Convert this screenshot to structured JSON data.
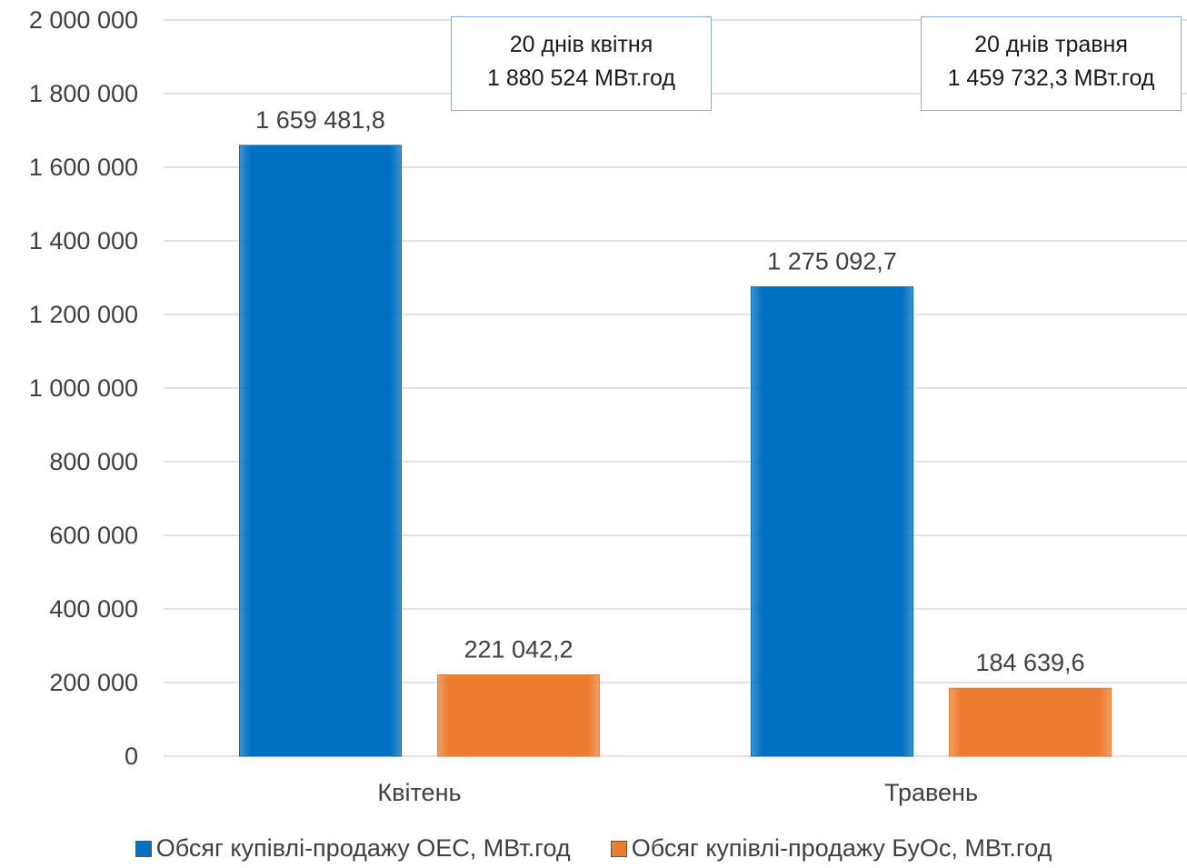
{
  "chart_data": {
    "type": "bar",
    "categories": [
      "Квітень",
      "Травень"
    ],
    "series": [
      {
        "name": "Обсяг купівлі-продажу ОЕС, МВт.год",
        "values": [
          1659481.8,
          1275092.7
        ],
        "labels": [
          "1 659 481,8",
          "1 275 092,7"
        ],
        "color": "#0070c0"
      },
      {
        "name": "Обсяг купівлі-продажу БуОс, МВт.год",
        "values": [
          221042.2,
          184639.6
        ],
        "labels": [
          "221 042,2",
          "184 639,6"
        ],
        "color": "#ed7d31"
      }
    ],
    "ylim": [
      0,
      2000000
    ],
    "yticks": [
      0,
      200000,
      400000,
      600000,
      800000,
      1000000,
      1200000,
      1400000,
      1600000,
      1800000,
      2000000
    ],
    "ytick_labels": [
      "0",
      "200 000",
      "400 000",
      "600 000",
      "800 000",
      "1 000 000",
      "1 200 000",
      "1 400 000",
      "1 600 000",
      "1 800 000",
      "2 000 000"
    ],
    "grid": true,
    "legend_position": "bottom",
    "annotations": [
      {
        "line1": "20 днів квітня",
        "line2": "1 880 524 МВт.год"
      },
      {
        "line1": "20 днів травня",
        "line2": "1 459 732,3 МВт.год"
      }
    ]
  }
}
